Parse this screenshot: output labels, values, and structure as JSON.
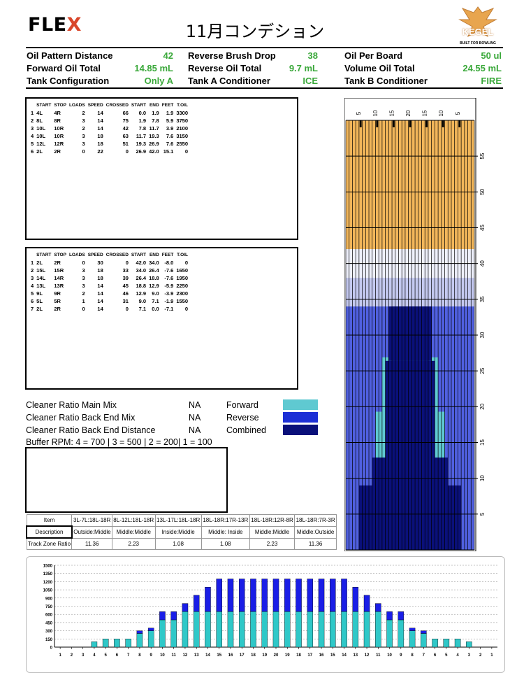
{
  "header": {
    "logo_left": "FLE",
    "logo_left_x": "X",
    "title": "11月コンデション",
    "kegel_logo": "KEGEL",
    "kegel_tagline": "BUILT FOR BOWLING"
  },
  "info": [
    {
      "label": "Oil Pattern Distance",
      "value": "42"
    },
    {
      "label": "Reverse Brush Drop",
      "value": "38"
    },
    {
      "label": "Oil Per Board",
      "value": "50 ul"
    },
    {
      "label": "Forward Oil Total",
      "value": "14.85 mL"
    },
    {
      "label": "Reverse Oil Total",
      "value": "9.7 mL"
    },
    {
      "label": "Volume Oil Total",
      "value": "24.55 mL"
    },
    {
      "label": "Tank Configuration",
      "value": "Only A"
    },
    {
      "label": "Tank A Conditioner",
      "value": "ICE"
    },
    {
      "label": "Tank B Conditioner",
      "value": "FIRE"
    }
  ],
  "step_headers": [
    "START",
    "STOP",
    "LOADS",
    "SPEED",
    "CROSSED",
    "START",
    "END",
    "FEET",
    "T.OIL"
  ],
  "forward_steps": [
    [
      "1",
      "4L",
      "4R",
      "2",
      "14",
      "66",
      "0.0",
      "1.9",
      "1.9",
      "3300"
    ],
    [
      "2",
      "8L",
      "8R",
      "3",
      "14",
      "75",
      "1.9",
      "7.8",
      "5.9",
      "3750"
    ],
    [
      "3",
      "10L",
      "10R",
      "2",
      "14",
      "42",
      "7.8",
      "11.7",
      "3.9",
      "2100"
    ],
    [
      "4",
      "10L",
      "10R",
      "3",
      "18",
      "63",
      "11.7",
      "19.3",
      "7.6",
      "3150"
    ],
    [
      "5",
      "12L",
      "12R",
      "3",
      "18",
      "51",
      "19.3",
      "26.9",
      "7.6",
      "2550"
    ],
    [
      "6",
      "2L",
      "2R",
      "0",
      "22",
      "0",
      "26.9",
      "42.0",
      "15.1",
      "0"
    ]
  ],
  "reverse_steps": [
    [
      "1",
      "2L",
      "2R",
      "0",
      "30",
      "0",
      "42.0",
      "34.0",
      "-8.0",
      "0"
    ],
    [
      "2",
      "15L",
      "15R",
      "3",
      "18",
      "33",
      "34.0",
      "26.4",
      "-7.6",
      "1650"
    ],
    [
      "3",
      "14L",
      "14R",
      "3",
      "18",
      "39",
      "26.4",
      "18.8",
      "-7.6",
      "1950"
    ],
    [
      "4",
      "13L",
      "13R",
      "3",
      "14",
      "45",
      "18.8",
      "12.9",
      "-5.9",
      "2250"
    ],
    [
      "5",
      "9L",
      "9R",
      "2",
      "14",
      "46",
      "12.9",
      "9.0",
      "-3.9",
      "2300"
    ],
    [
      "6",
      "5L",
      "5R",
      "1",
      "14",
      "31",
      "9.0",
      "7.1",
      "-1.9",
      "1550"
    ],
    [
      "7",
      "2L",
      "2R",
      "0",
      "14",
      "0",
      "7.1",
      "0.0",
      "-7.1",
      "0"
    ]
  ],
  "cleaner": [
    {
      "label": "Cleaner Ratio Main Mix",
      "value": "NA",
      "legend": "Forward",
      "color": "#5fc9d1"
    },
    {
      "label": "Cleaner Ratio Back End Mix",
      "value": "NA",
      "legend": "Reverse",
      "color": "#1d2fd6"
    },
    {
      "label": "Cleaner Ratio Back End Distance",
      "value": "NA",
      "legend": "Combined",
      "color": "#0a107a"
    }
  ],
  "buffer_rpm": "Buffer RPM: 4 = 700  |  3 = 500  |  2 = 200|  1 = 100",
  "zones": {
    "item_label": "Item",
    "desc_label": "Description",
    "ratio_label": "Track Zone Ratio",
    "cols": [
      {
        "item": "3L-7L:18L-18R",
        "desc": "Outside:Middle",
        "ratio": "11.36"
      },
      {
        "item": "8L-12L:18L-18R",
        "desc": "Middle:Middle",
        "ratio": "2.23"
      },
      {
        "item": "13L-17L:18L-18R",
        "desc": "Inside:Middle",
        "ratio": "1.08"
      },
      {
        "item": "18L-18R:17R-13R",
        "desc": "Middle: Inside",
        "ratio": "1.08"
      },
      {
        "item": "18L-18R:12R-8R",
        "desc": "Middle:Middle",
        "ratio": "2.23"
      },
      {
        "item": "18L-18R:7R-3R",
        "desc": "Middle:Outside",
        "ratio": "11.36"
      }
    ]
  },
  "lane_graph": {
    "board_ticks": [
      "5",
      "10",
      "15",
      "20",
      "15",
      "10",
      "5"
    ],
    "distance_ticks": [
      "55",
      "50",
      "45",
      "40",
      "35",
      "30",
      "25",
      "20",
      "15",
      "10",
      "5"
    ],
    "colors": {
      "wood": "#f2b65a",
      "forward": "#5fc9d1",
      "reverse": "#1d2fd6",
      "combined": "#0a107a"
    }
  },
  "chart_data": {
    "type": "bar",
    "stacked": true,
    "categories": [
      "1",
      "2",
      "3",
      "4",
      "5",
      "6",
      "7",
      "8",
      "9",
      "10",
      "11",
      "12",
      "13",
      "14",
      "15",
      "16",
      "17",
      "18",
      "19",
      "20",
      "19",
      "18",
      "17",
      "16",
      "15",
      "14",
      "13",
      "12",
      "11",
      "10",
      "9",
      "8",
      "7",
      "6",
      "5",
      "4",
      "3",
      "2",
      "1"
    ],
    "series": [
      {
        "color": "#2fc8c8",
        "values": [
          0,
          0,
          0,
          100,
          150,
          150,
          150,
          250,
          300,
          500,
          500,
          650,
          650,
          650,
          650,
          650,
          650,
          650,
          650,
          650,
          650,
          650,
          650,
          650,
          650,
          650,
          650,
          650,
          650,
          500,
          500,
          300,
          250,
          150,
          150,
          150,
          100,
          0,
          0
        ]
      },
      {
        "color": "#1a1ee6",
        "values": [
          0,
          0,
          0,
          0,
          0,
          0,
          0,
          50,
          50,
          150,
          150,
          150,
          300,
          450,
          600,
          600,
          600,
          600,
          600,
          600,
          600,
          600,
          600,
          600,
          600,
          600,
          450,
          300,
          150,
          150,
          150,
          50,
          50,
          0,
          0,
          0,
          0,
          0,
          0
        ]
      }
    ],
    "ylim": [
      0,
      1500
    ],
    "yticks": [
      "0",
      "150",
      "300",
      "450",
      "600",
      "750",
      "900",
      "1050",
      "1200",
      "1350",
      "1500"
    ],
    "grid": true
  }
}
